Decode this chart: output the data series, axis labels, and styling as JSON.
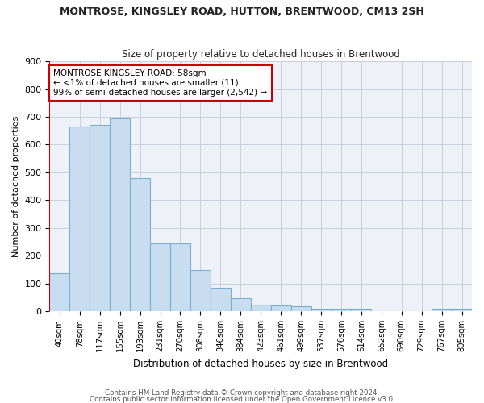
{
  "title": "MONTROSE, KINGSLEY ROAD, HUTTON, BRENTWOOD, CM13 2SH",
  "subtitle": "Size of property relative to detached houses in Brentwood",
  "xlabel": "Distribution of detached houses by size in Brentwood",
  "ylabel": "Number of detached properties",
  "bar_color": "#c8ddf0",
  "bar_edge_color": "#7aafd4",
  "categories": [
    "40sqm",
    "78sqm",
    "117sqm",
    "155sqm",
    "193sqm",
    "231sqm",
    "270sqm",
    "308sqm",
    "346sqm",
    "384sqm",
    "423sqm",
    "461sqm",
    "499sqm",
    "537sqm",
    "576sqm",
    "614sqm",
    "652sqm",
    "690sqm",
    "729sqm",
    "767sqm",
    "805sqm"
  ],
  "values": [
    137,
    665,
    670,
    693,
    480,
    245,
    245,
    147,
    85,
    47,
    22,
    20,
    18,
    10,
    8,
    8,
    0,
    0,
    0,
    9,
    9
  ],
  "ylim": [
    0,
    900
  ],
  "yticks": [
    0,
    100,
    200,
    300,
    400,
    500,
    600,
    700,
    800,
    900
  ],
  "marker_color": "#cc0000",
  "annotation_text": "MONTROSE KINGSLEY ROAD: 58sqm\n← <1% of detached houses are smaller (11)\n99% of semi-detached houses are larger (2,542) →",
  "annotation_box_color": "#ffffff",
  "annotation_box_edge": "#cc0000",
  "footer1": "Contains HM Land Registry data © Crown copyright and database right 2024.",
  "footer2": "Contains public sector information licensed under the Open Government Licence v3.0.",
  "background_color": "#eef2f8",
  "grid_color": "#c8cedd"
}
